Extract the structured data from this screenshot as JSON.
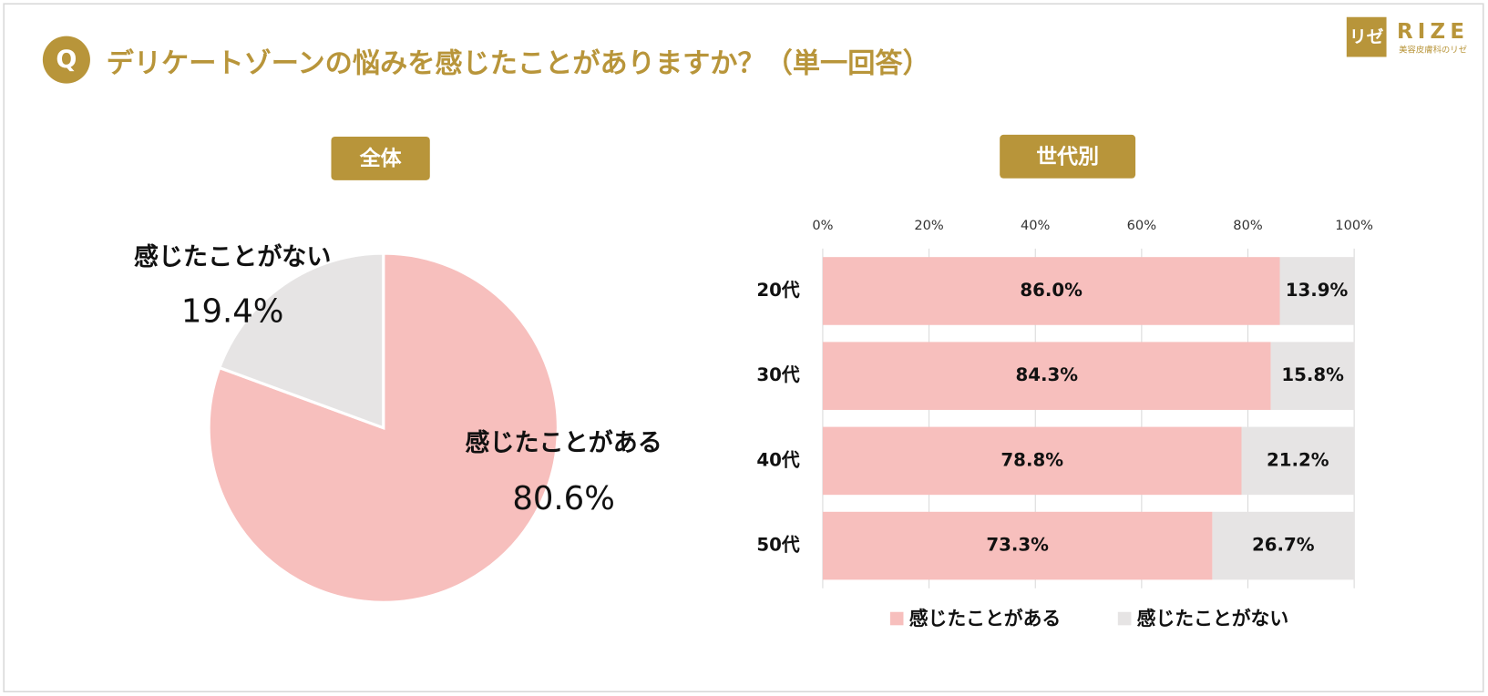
{
  "header": {
    "badge": "Q",
    "title": "デリケートゾーンの悩みを感じたことがありますか？（単一回答）",
    "logo_mark": "リゼ",
    "logo": "RIZE",
    "logo_sub": "美容皮膚科のリゼ"
  },
  "chart_data": [
    {
      "type": "pie",
      "title": "全体",
      "categories": [
        "感じたことがある",
        "感じたことがない"
      ],
      "values": [
        80.6,
        19.4
      ],
      "value_labels": [
        "80.6%",
        "19.4%"
      ],
      "colors": [
        "#f7bfbd",
        "#e6e4e4"
      ]
    },
    {
      "type": "bar",
      "orientation": "horizontal",
      "stacked": true,
      "title": "世代別",
      "categories": [
        "20代",
        "30代",
        "40代",
        "50代"
      ],
      "series": [
        {
          "name": "感じたことがある",
          "color": "#f7bfbd",
          "values": [
            86.0,
            84.3,
            78.8,
            73.3
          ],
          "value_labels": [
            "86.0%",
            "84.3%",
            "78.8%",
            "73.3%"
          ]
        },
        {
          "name": "感じたことがない",
          "color": "#e6e4e4",
          "values": [
            13.9,
            15.8,
            21.2,
            26.7
          ],
          "value_labels": [
            "13.9%",
            "15.8%",
            "21.2%",
            "26.7%"
          ]
        }
      ],
      "xlim": [
        0,
        100
      ],
      "xticks": [
        {
          "value": 0,
          "label": "0%"
        },
        {
          "value": 20,
          "label": "20%"
        },
        {
          "value": 40,
          "label": "40%"
        },
        {
          "value": 60,
          "label": "60%"
        },
        {
          "value": 80,
          "label": "80%"
        },
        {
          "value": 100,
          "label": "100%"
        }
      ],
      "grid": true,
      "legend": "bottom"
    }
  ]
}
